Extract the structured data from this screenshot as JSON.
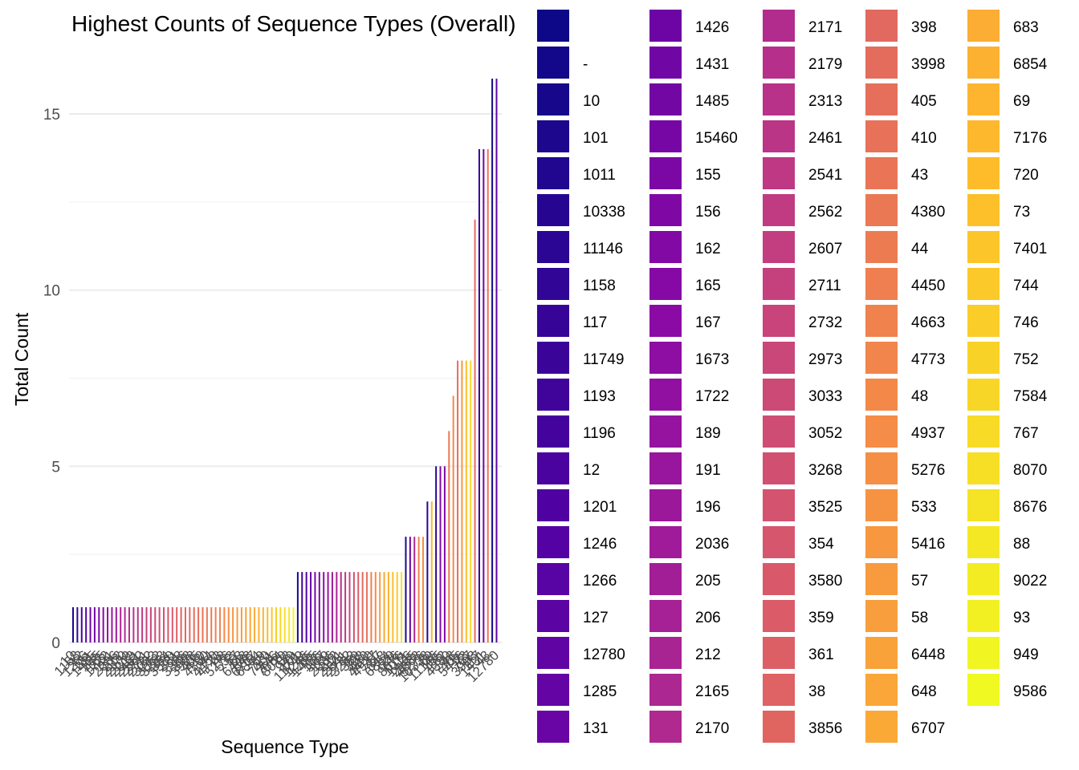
{
  "chart_data": {
    "type": "bar",
    "title": "Highest Counts of Sequence Types (Overall)",
    "xlabel": "Sequence Type",
    "ylabel": "Total Count",
    "ylim": [
      0,
      16.5
    ],
    "yticks": [
      0,
      5,
      10,
      15
    ],
    "grid": true,
    "legend_position": "right",
    "palette": "plasma",
    "legend": {
      "title": "",
      "entries": [
        "",
        "-",
        "10",
        "101",
        "1011",
        "10338",
        "11146",
        "1158",
        "117",
        "11749",
        "1193",
        "1196",
        "12",
        "1201",
        "1246",
        "1266",
        "127",
        "12780",
        "1285",
        "131",
        "1426",
        "1431",
        "1485",
        "15460",
        "155",
        "156",
        "162",
        "165",
        "167",
        "1673",
        "1722",
        "189",
        "191",
        "196",
        "2036",
        "205",
        "206",
        "212",
        "2165",
        "2170",
        "2171",
        "2179",
        "2313",
        "2461",
        "2541",
        "2562",
        "2607",
        "2711",
        "2732",
        "2973",
        "3033",
        "3052",
        "3268",
        "3525",
        "354",
        "3580",
        "359",
        "361",
        "38",
        "3856",
        "398",
        "3998",
        "405",
        "410",
        "43",
        "4380",
        "44",
        "4450",
        "4663",
        "4773",
        "48",
        "4937",
        "5276",
        "533",
        "5416",
        "57",
        "58",
        "6448",
        "648",
        "6707",
        "683",
        "6854",
        "69",
        "7176",
        "720",
        "73",
        "7401",
        "744",
        "746",
        "752",
        "7584",
        "767",
        "8070",
        "8676",
        "88",
        "9022",
        "93",
        "949",
        "9586"
      ]
    },
    "bars": {
      "note": "Bars ordered by ascending count; x tick labels overlap and are illegible. Each bar's palette_index is the approximate legend level (0-98) from its fill color.",
      "values": [
        1,
        1,
        1,
        1,
        1,
        1,
        1,
        1,
        1,
        1,
        1,
        1,
        1,
        1,
        1,
        1,
        1,
        1,
        1,
        1,
        1,
        1,
        1,
        1,
        1,
        1,
        1,
        1,
        1,
        1,
        1,
        1,
        1,
        1,
        1,
        1,
        1,
        1,
        1,
        1,
        1,
        1,
        1,
        1,
        1,
        1,
        1,
        1,
        1,
        1,
        1,
        1,
        2,
        2,
        2,
        2,
        2,
        2,
        2,
        2,
        2,
        2,
        2,
        2,
        2,
        2,
        2,
        2,
        2,
        2,
        2,
        2,
        2,
        2,
        2,
        2,
        2,
        3,
        3,
        3,
        3,
        3,
        4,
        4,
        5,
        5,
        5,
        6,
        7,
        8,
        8,
        8,
        8,
        12,
        14,
        14,
        14,
        16,
        16
      ],
      "palette_index": [
        2,
        7,
        12,
        15,
        19,
        22,
        24,
        27,
        30,
        32,
        34,
        37,
        39,
        41,
        42,
        43,
        45,
        47,
        48,
        50,
        51,
        52,
        54,
        55,
        57,
        58,
        59,
        60,
        61,
        62,
        63,
        65,
        66,
        67,
        69,
        70,
        72,
        73,
        75,
        76,
        77,
        78,
        79,
        81,
        82,
        84,
        86,
        88,
        90,
        92,
        94,
        97,
        3,
        9,
        14,
        18,
        22,
        25,
        28,
        31,
        34,
        37,
        40,
        44,
        48,
        52,
        56,
        60,
        63,
        67,
        71,
        75,
        78,
        81,
        84,
        88,
        93,
        4,
        20,
        38,
        68,
        72,
        5,
        82,
        6,
        24,
        26,
        65,
        70,
        62,
        74,
        85,
        91,
        61,
        8,
        21,
        64,
        1,
        17
      ]
    }
  }
}
